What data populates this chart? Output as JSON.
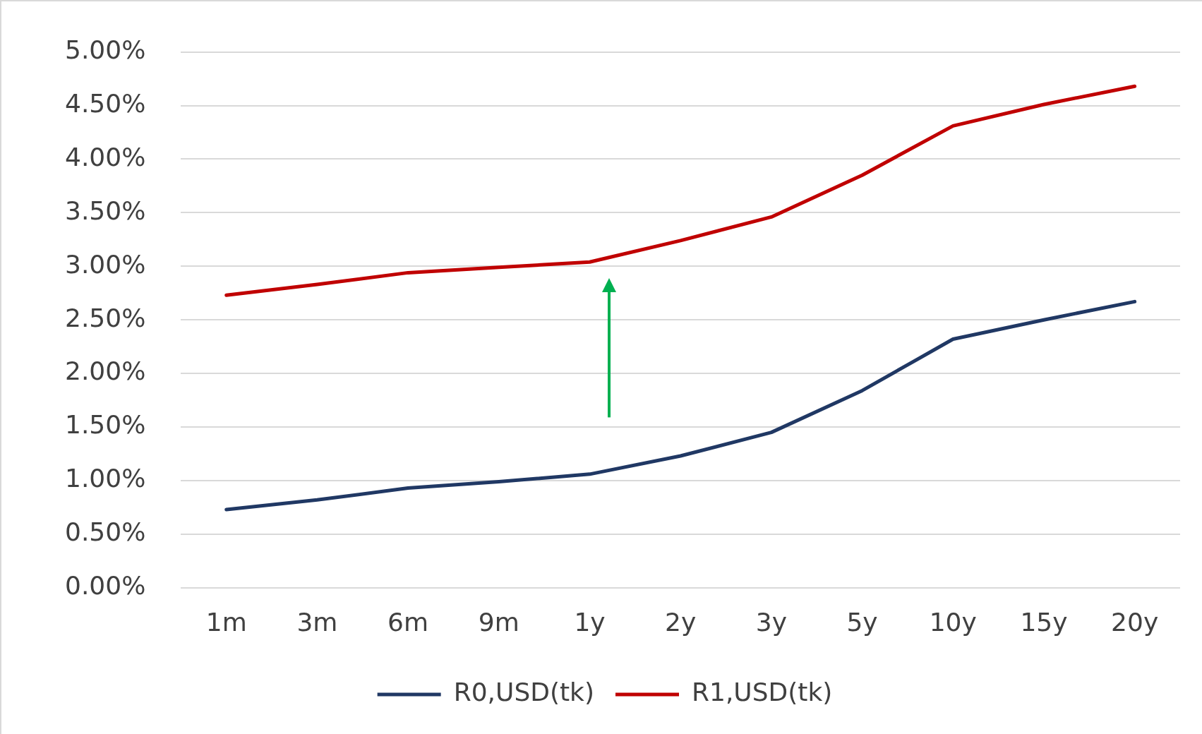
{
  "chart_data": {
    "type": "line",
    "categories": [
      "1m",
      "3m",
      "6m",
      "9m",
      "1y",
      "2y",
      "3y",
      "5y",
      "10y",
      "15y",
      "20y"
    ],
    "series": [
      {
        "name": "R0,USD(tk)",
        "color": "#203864",
        "values": [
          0.73,
          0.82,
          0.93,
          0.99,
          1.06,
          1.23,
          1.45,
          1.84,
          2.32,
          2.5,
          2.67
        ]
      },
      {
        "name": "R1,USD(tk)",
        "color": "#c00000",
        "values": [
          2.73,
          2.83,
          2.94,
          2.99,
          3.04,
          3.24,
          3.46,
          3.85,
          4.31,
          4.51,
          4.68
        ]
      }
    ],
    "ylim": [
      0,
      5
    ],
    "yticks": [
      {
        "value": 0,
        "label": "0.00%"
      },
      {
        "value": 0.5,
        "label": "0.50%"
      },
      {
        "value": 1,
        "label": "1.00%"
      },
      {
        "value": 1.5,
        "label": "1.50%"
      },
      {
        "value": 2,
        "label": "2.00%"
      },
      {
        "value": 2.5,
        "label": "2.50%"
      },
      {
        "value": 3,
        "label": "3.00%"
      },
      {
        "value": 3.5,
        "label": "3.50%"
      },
      {
        "value": 4,
        "label": "4.00%"
      },
      {
        "value": 4.5,
        "label": "4.50%"
      },
      {
        "value": 5,
        "label": "5.00%"
      }
    ],
    "grid": "y",
    "legend": "bottom",
    "marker": "none",
    "line_style": "solid"
  }
}
